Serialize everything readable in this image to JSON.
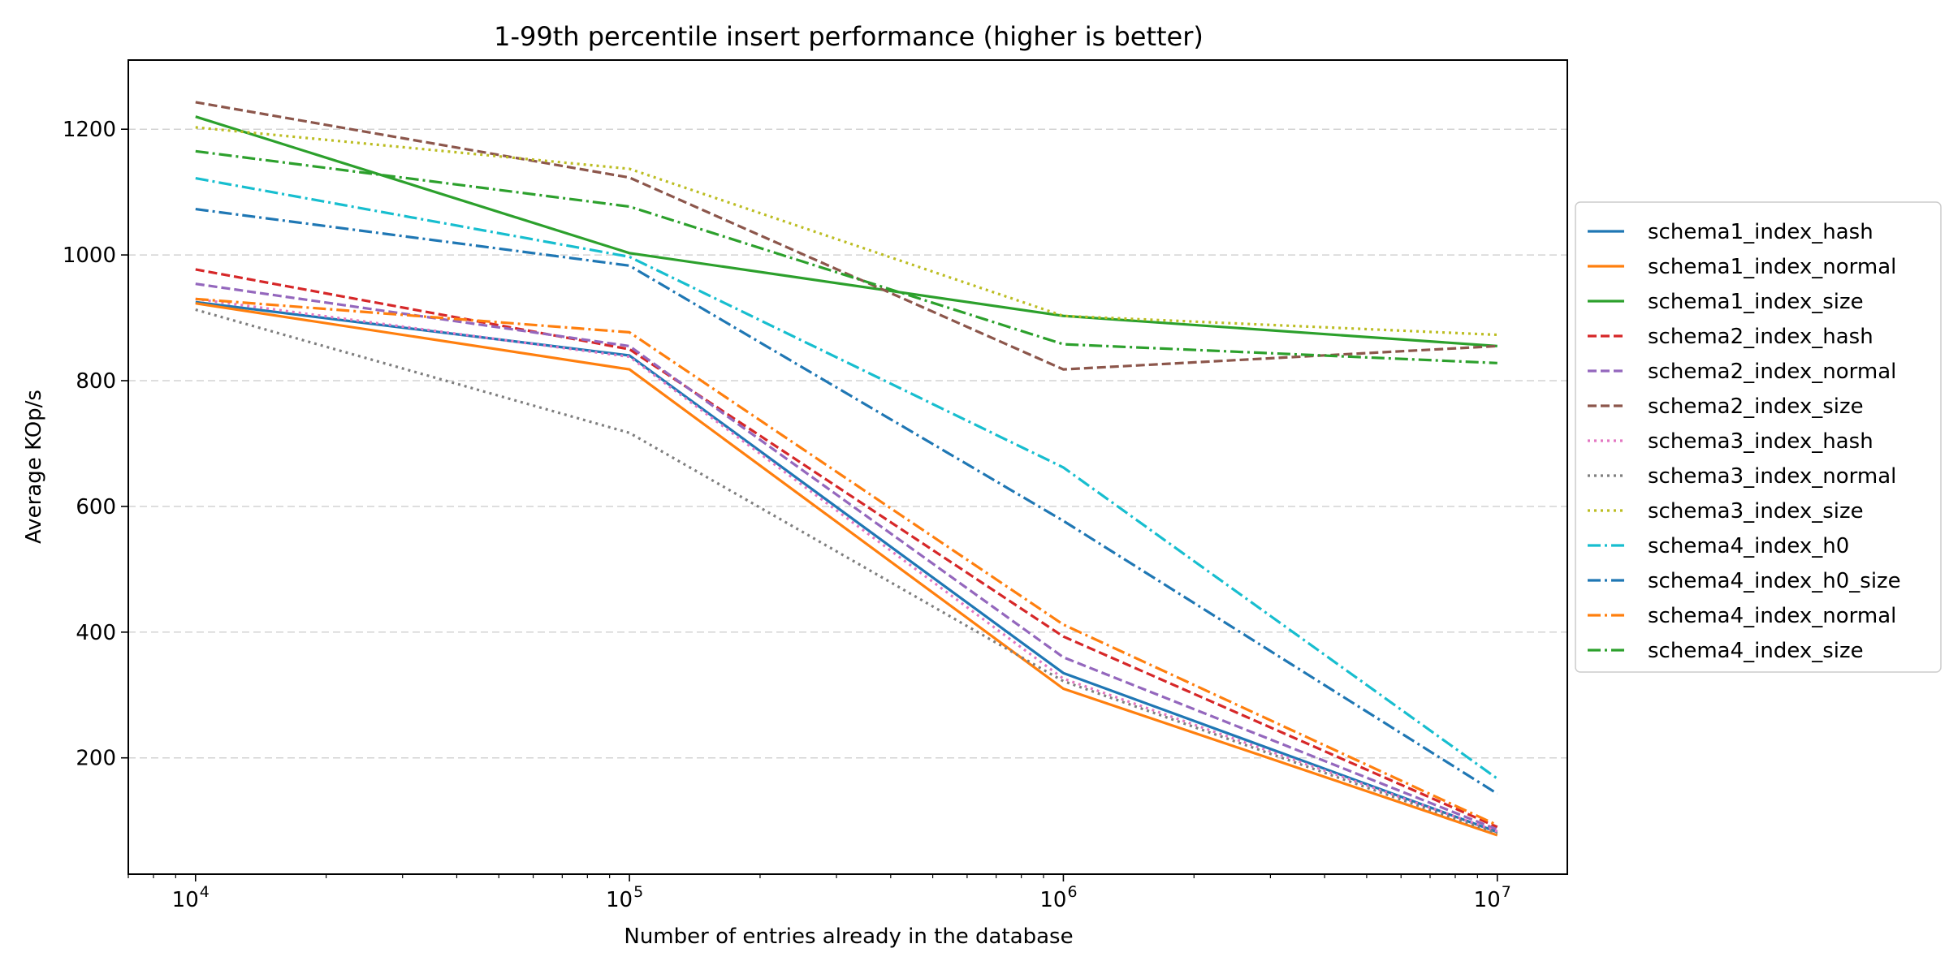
{
  "chart_data": {
    "type": "line",
    "title": "1-99th percentile insert performance (higher is better)",
    "xlabel": "Number of entries already in the database",
    "ylabel": "Average KOp/s",
    "x_scale": "log",
    "x": [
      10000,
      100000,
      1000000,
      10000000
    ],
    "x_tick_labels": [
      {
        "value": 10000,
        "base": "10",
        "exp": "4"
      },
      {
        "value": 100000,
        "base": "10",
        "exp": "5"
      },
      {
        "value": 1000000,
        "base": "10",
        "exp": "6"
      },
      {
        "value": 10000000,
        "base": "10",
        "exp": "7"
      }
    ],
    "xlim": [
      7000,
      14500000
    ],
    "ylim": [
      15,
      1310
    ],
    "y_ticks": [
      200,
      400,
      600,
      800,
      1000,
      1200
    ],
    "grid": "horizontal dashed",
    "legend_position": "right, outside plot",
    "series": [
      {
        "name": "schema1_index_hash",
        "values": [
          925,
          840,
          335,
          82
        ],
        "color": "#1f77b4",
        "dash": "solid"
      },
      {
        "name": "schema1_index_normal",
        "values": [
          923,
          818,
          310,
          77
        ],
        "color": "#ff7f0e",
        "dash": "solid"
      },
      {
        "name": "schema1_index_size",
        "values": [
          1220,
          1003,
          903,
          855
        ],
        "color": "#2ca02c",
        "dash": "solid"
      },
      {
        "name": "schema2_index_hash",
        "values": [
          977,
          850,
          393,
          90
        ],
        "color": "#d62728",
        "dash": "dashed"
      },
      {
        "name": "schema2_index_normal",
        "values": [
          954,
          855,
          360,
          86
        ],
        "color": "#9467bd",
        "dash": "dashed"
      },
      {
        "name": "schema2_index_size",
        "values": [
          1243,
          1123,
          818,
          855
        ],
        "color": "#8c564b",
        "dash": "dashed"
      },
      {
        "name": "schema3_index_hash",
        "values": [
          930,
          838,
          326,
          83
        ],
        "color": "#e377c2",
        "dash": "dotted"
      },
      {
        "name": "schema3_index_normal",
        "values": [
          913,
          717,
          322,
          80
        ],
        "color": "#7f7f7f",
        "dash": "dotted"
      },
      {
        "name": "schema3_index_size",
        "values": [
          1203,
          1137,
          903,
          873
        ],
        "color": "#bcbd22",
        "dash": "dotted"
      },
      {
        "name": "schema4_index_h0",
        "values": [
          1122,
          997,
          662,
          167
        ],
        "color": "#17becf",
        "dash": "dashdot"
      },
      {
        "name": "schema4_index_h0_size",
        "values": [
          1073,
          983,
          577,
          143
        ],
        "color": "#1f77b4",
        "dash": "dashdot"
      },
      {
        "name": "schema4_index_normal",
        "values": [
          930,
          877,
          412,
          93
        ],
        "color": "#ff7f0e",
        "dash": "dashdot"
      },
      {
        "name": "schema4_index_size",
        "values": [
          1165,
          1077,
          858,
          828
        ],
        "color": "#2ca02c",
        "dash": "dashdot"
      }
    ]
  }
}
